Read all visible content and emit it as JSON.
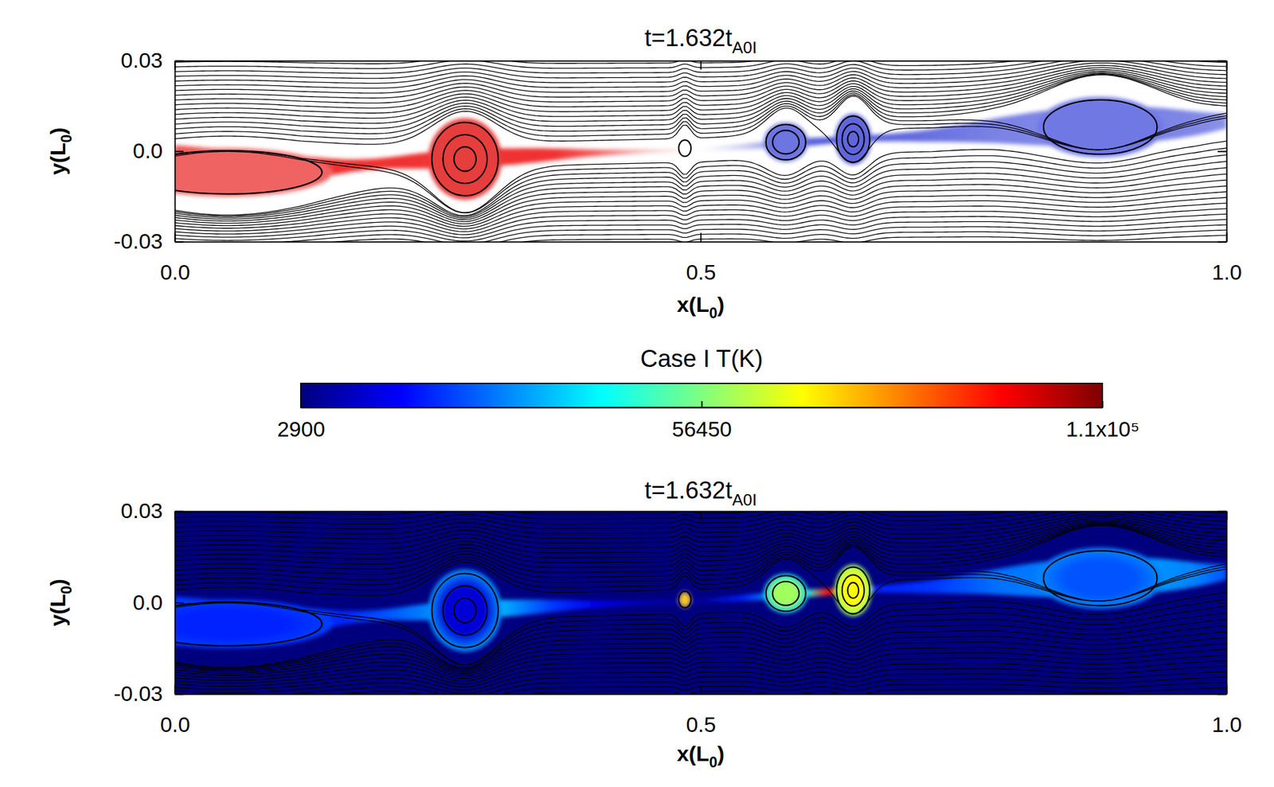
{
  "chart_data": [
    {
      "type": "contour",
      "title": [
        {
          "text": "t=1.632t"
        },
        {
          "text": "A0I",
          "sub": true
        }
      ],
      "xlabel": [
        {
          "text": "x(L"
        },
        {
          "text": "0",
          "sub": true
        },
        {
          "text": ")"
        }
      ],
      "ylabel": [
        {
          "text": "y(L"
        },
        {
          "text": "0",
          "sub": true
        },
        {
          "text": ")"
        }
      ],
      "xlim": [
        0,
        1
      ],
      "xticks": [
        {
          "value": 0,
          "label": "0.0"
        },
        {
          "value": 0.5,
          "label": "0.5"
        },
        {
          "value": 1,
          "label": "1.0"
        }
      ],
      "ylim": [
        -0.03,
        0.03
      ],
      "yticks": [
        {
          "value": -0.03,
          "label": "-0.03"
        },
        {
          "value": 0,
          "label": "0.0"
        },
        {
          "value": 0.03,
          "label": "0.03"
        }
      ],
      "sheet": {
        "x": [
          0,
          0.12,
          0.16,
          0.2,
          0.24,
          0.31,
          0.36,
          0.4,
          0.45,
          0.5,
          0.54,
          0.6,
          0.62,
          0.67,
          0.72,
          0.78,
          0.85,
          0.93,
          0.97,
          1.0
        ],
        "y": [
          -0.006,
          -0.006,
          -0.005,
          -0.004,
          -0.003,
          -0.002,
          -0.001,
          -0.0005,
          0,
          0.0005,
          0.0015,
          0.003,
          0.0035,
          0.0045,
          0.005,
          0.007,
          0.008,
          0.009,
          0.009,
          0.01
        ],
        "thickness": [
          0.016,
          0.009,
          0.004,
          0.003,
          0.006,
          0.006,
          0.004,
          0.002,
          0.001,
          0.0008,
          0.002,
          0.003,
          0.002,
          0.002,
          0.004,
          0.008,
          0.014,
          0.012,
          0.008,
          0.005
        ],
        "colors": [
          "#f05050",
          "#f03838",
          "#f03030",
          "#f03030",
          "#ef3434",
          "#f03030",
          "#f03030",
          "#f26060",
          "#f8c0c0",
          "#ffffff",
          "#d0d0f4",
          "#5a62dc",
          "#4e58da",
          "#5a62dc",
          "#6a72e0",
          "#7a82e4",
          "#8088e6",
          "#7a82e4",
          "#8088e6",
          "#8c92e8"
        ]
      },
      "plasmoids": {
        "x": [
          0.05,
          0.276,
          0.485,
          0.581,
          0.645,
          0.88
        ],
        "y": [
          -0.007,
          -0.0026,
          0.001,
          0.003,
          0.004,
          0.008
        ],
        "width": [
          0.2,
          0.07,
          0.013,
          0.042,
          0.035,
          0.12
        ],
        "height": [
          0.016,
          0.027,
          0.006,
          0.013,
          0.017,
          0.02
        ],
        "contours": [
          1,
          3,
          1,
          2,
          3,
          1
        ],
        "colors": [
          "#f06464",
          "#e63c3c",
          "#ffffff",
          "#6c74e0",
          "#5e66dc",
          "#7078e4"
        ]
      }
    },
    {
      "type": "contour",
      "title": [
        {
          "text": "t=1.632t"
        },
        {
          "text": "A0I",
          "sub": true
        }
      ],
      "xlabel": [
        {
          "text": "x(L"
        },
        {
          "text": "0",
          "sub": true
        },
        {
          "text": ")"
        }
      ],
      "ylabel": [
        {
          "text": "y(L"
        },
        {
          "text": "0",
          "sub": true
        },
        {
          "text": ")"
        }
      ],
      "xlim": [
        0,
        1
      ],
      "xticks": [
        {
          "value": 0,
          "label": "0.0"
        },
        {
          "value": 0.5,
          "label": "0.5"
        },
        {
          "value": 1,
          "label": "1.0"
        }
      ],
      "ylim": [
        -0.03,
        0.03
      ],
      "yticks": [
        {
          "value": -0.03,
          "label": "-0.03"
        },
        {
          "value": 0,
          "label": "0.0"
        },
        {
          "value": 0.03,
          "label": "0.03"
        }
      ],
      "sheet": {
        "x": [
          0,
          0.12,
          0.16,
          0.2,
          0.24,
          0.31,
          0.36,
          0.4,
          0.45,
          0.5,
          0.54,
          0.6,
          0.62,
          0.67,
          0.72,
          0.78,
          0.85,
          0.93,
          0.97,
          1.0
        ],
        "y": [
          -0.006,
          -0.006,
          -0.005,
          -0.004,
          -0.003,
          -0.002,
          -0.001,
          -0.0005,
          0,
          0.0005,
          0.0015,
          0.003,
          0.0035,
          0.0045,
          0.005,
          0.007,
          0.008,
          0.009,
          0.009,
          0.01
        ],
        "thickness": [
          0.016,
          0.009,
          0.004,
          0.003,
          0.006,
          0.006,
          0.004,
          0.002,
          0.001,
          0.0008,
          0.002,
          0.003,
          0.002,
          0.002,
          0.004,
          0.008,
          0.014,
          0.012,
          0.008,
          0.005
        ],
        "temperature": [
          22000,
          24000,
          20000,
          25000,
          30000,
          35000,
          22000,
          15000,
          10000,
          8000,
          20000,
          45000,
          95000,
          20000,
          22000,
          28000,
          30000,
          32000,
          30000,
          25000
        ]
      },
      "plasmoids": {
        "x": [
          0.05,
          0.276,
          0.485,
          0.581,
          0.645,
          0.88
        ],
        "y": [
          -0.007,
          -0.0026,
          0.001,
          0.003,
          0.004,
          0.008
        ],
        "width": [
          0.2,
          0.07,
          0.013,
          0.042,
          0.035,
          0.12
        ],
        "height": [
          0.016,
          0.027,
          0.006,
          0.013,
          0.017,
          0.02
        ],
        "contours": [
          1,
          3,
          1,
          2,
          3,
          1
        ],
        "temperature": [
          20000,
          12000,
          75000,
          60000,
          70000,
          25000
        ]
      },
      "colorbar": {
        "title": "Case I T(K)",
        "range": [
          2900,
          110000
        ],
        "ticks": [
          2900,
          56450,
          {
            "value": 110000,
            "label": "1.1x10⁵"
          }
        ]
      }
    }
  ]
}
